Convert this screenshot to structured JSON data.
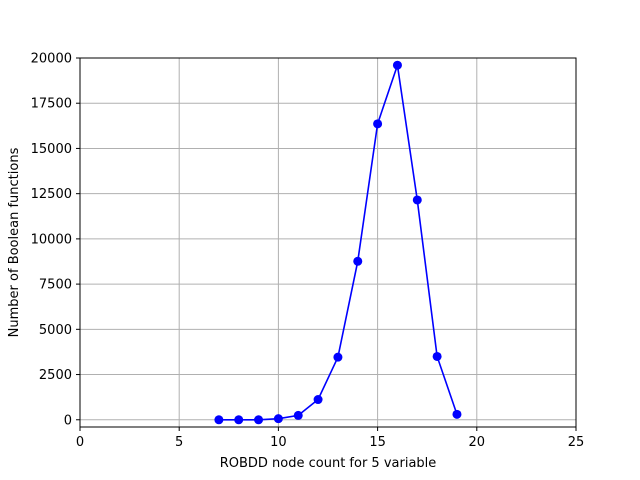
{
  "chart_data": {
    "type": "line",
    "title": "",
    "xlabel": "ROBDD node count for 5 variable",
    "ylabel": "Number of Boolean functions",
    "xlim": [
      0,
      25
    ],
    "ylim": [
      -400,
      20000
    ],
    "xticks": [
      0,
      5,
      10,
      15,
      20,
      25
    ],
    "yticks": [
      0,
      2500,
      5000,
      7500,
      10000,
      12500,
      15000,
      17500,
      20000
    ],
    "grid": true,
    "series": [
      {
        "color": "#0000ff",
        "marker": "circle",
        "x": [
          7,
          8,
          9,
          10,
          11,
          12,
          13,
          14,
          15,
          16,
          17,
          18,
          19
        ],
        "y": [
          0,
          0,
          0,
          60,
          240,
          1120,
          3460,
          8760,
          16360,
          19600,
          12150,
          3500,
          300
        ]
      }
    ]
  }
}
